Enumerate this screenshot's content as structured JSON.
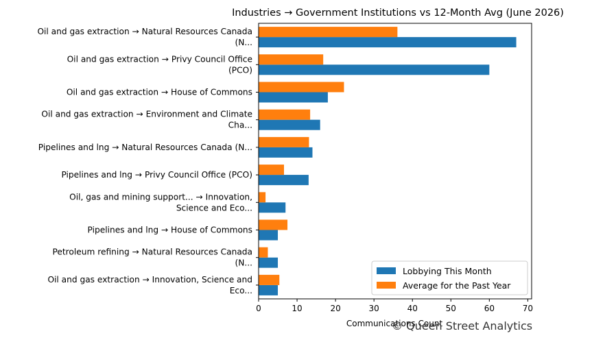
{
  "chart_data": {
    "type": "bar",
    "orientation": "horizontal",
    "title": "Industries → Government Institutions vs 12-Month Avg (June 2026)",
    "xlabel": "Communications Count",
    "ylabel": "",
    "xlim": [
      0,
      71
    ],
    "xticks": [
      0,
      10,
      20,
      30,
      40,
      50,
      60,
      70
    ],
    "grid": false,
    "legend_position": "lower-right",
    "categories": [
      [
        "Oil and gas extraction → Natural Resources Canada",
        "(N..."
      ],
      [
        "Oil and gas extraction → Privy Council Office",
        "(PCO)"
      ],
      [
        "Oil and gas extraction → House of Commons"
      ],
      [
        "Oil and gas extraction → Environment and Climate",
        "Cha..."
      ],
      [
        "Pipelines and lng → Natural Resources Canada (N..."
      ],
      [
        "Pipelines and lng → Privy Council Office (PCO)"
      ],
      [
        "Oil, gas and mining support... → Innovation,",
        "Science and Eco..."
      ],
      [
        "Pipelines and lng → House of Commons"
      ],
      [
        "Petroleum refining → Natural Resources Canada",
        "(N..."
      ],
      [
        "Oil and gas extraction → Innovation, Science and",
        "Eco..."
      ]
    ],
    "series": [
      {
        "name": "Lobbying This Month",
        "color": "#1f77b4",
        "values": [
          67,
          60,
          18,
          16,
          14,
          13,
          7,
          5,
          5,
          5
        ]
      },
      {
        "name": "Average for the Past Year",
        "color": "#ff7f0e",
        "values": [
          36.1,
          16.8,
          22.2,
          13.4,
          13.1,
          6.6,
          1.8,
          7.5,
          2.4,
          5.4
        ]
      }
    ]
  },
  "watermark": "© Queen Street Analytics"
}
